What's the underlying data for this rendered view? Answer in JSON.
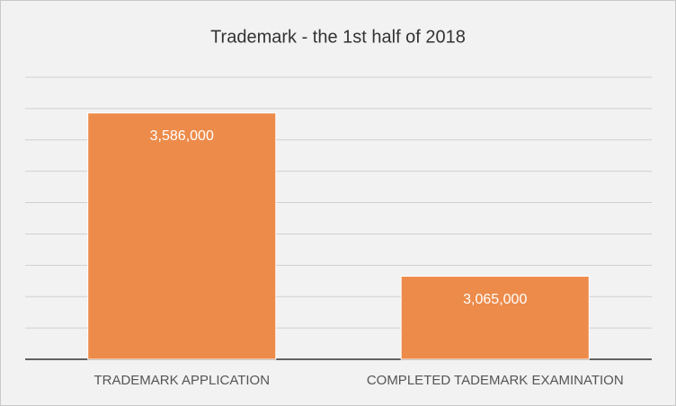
{
  "chart_data": {
    "type": "bar",
    "title": "Trademark - the 1st half of 2018",
    "categories": [
      "TRADEMARK APPLICATION",
      "COMPLETED TADEMARK EXAMINATION"
    ],
    "values": [
      3586000,
      3065000
    ],
    "value_labels": [
      "3,586,000",
      "3,065,000"
    ],
    "color": "#ed8b4a",
    "ylim": [
      2800000,
      3700000
    ],
    "yticks": [
      2800000,
      2900000,
      3000000,
      3100000,
      3200000,
      3300000,
      3400000,
      3500000,
      3600000,
      3700000
    ],
    "grid": true
  }
}
